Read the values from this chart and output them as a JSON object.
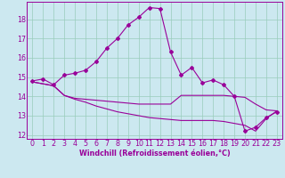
{
  "xlabel": "Windchill (Refroidissement éolien,°C)",
  "bg_color": "#cce8f0",
  "grid_color": "#99ccbb",
  "line_color": "#990099",
  "line1_x": [
    0,
    1,
    2,
    3,
    4,
    5,
    6,
    7,
    8,
    9,
    10,
    11,
    12,
    13,
    14,
    15,
    16,
    17,
    18,
    19,
    20,
    21,
    22,
    23
  ],
  "line1_y": [
    14.8,
    14.9,
    14.6,
    15.1,
    15.2,
    15.35,
    15.8,
    16.5,
    17.0,
    17.7,
    18.1,
    18.6,
    18.55,
    16.3,
    15.1,
    15.5,
    14.7,
    14.85,
    14.6,
    14.0,
    12.2,
    12.4,
    12.9,
    13.2
  ],
  "line2_x": [
    0,
    2,
    3,
    4,
    5,
    6,
    7,
    8,
    9,
    10,
    11,
    12,
    13,
    14,
    15,
    16,
    17,
    18,
    19,
    20,
    21,
    22,
    23
  ],
  "line2_y": [
    14.75,
    14.55,
    14.05,
    13.9,
    13.85,
    13.8,
    13.75,
    13.7,
    13.65,
    13.6,
    13.6,
    13.6,
    13.6,
    14.05,
    14.05,
    14.05,
    14.05,
    14.05,
    14.0,
    13.95,
    13.6,
    13.3,
    13.25
  ],
  "line3_x": [
    0,
    2,
    3,
    4,
    5,
    6,
    7,
    8,
    9,
    10,
    11,
    12,
    13,
    14,
    15,
    16,
    17,
    18,
    19,
    20,
    21,
    22,
    23
  ],
  "line3_y": [
    14.75,
    14.55,
    14.05,
    13.85,
    13.7,
    13.5,
    13.35,
    13.2,
    13.1,
    13.0,
    12.9,
    12.85,
    12.8,
    12.75,
    12.75,
    12.75,
    12.75,
    12.7,
    12.6,
    12.5,
    12.2,
    12.85,
    13.25
  ],
  "ylim": [
    11.8,
    18.9
  ],
  "xlim": [
    -0.5,
    23.5
  ],
  "yticks": [
    12,
    13,
    14,
    15,
    16,
    17,
    18
  ],
  "xticks": [
    0,
    1,
    2,
    3,
    4,
    5,
    6,
    7,
    8,
    9,
    10,
    11,
    12,
    13,
    14,
    15,
    16,
    17,
    18,
    19,
    20,
    21,
    22,
    23
  ],
  "font_size": 5.8,
  "marker": "D",
  "markersize": 2.0,
  "linewidth": 0.8
}
